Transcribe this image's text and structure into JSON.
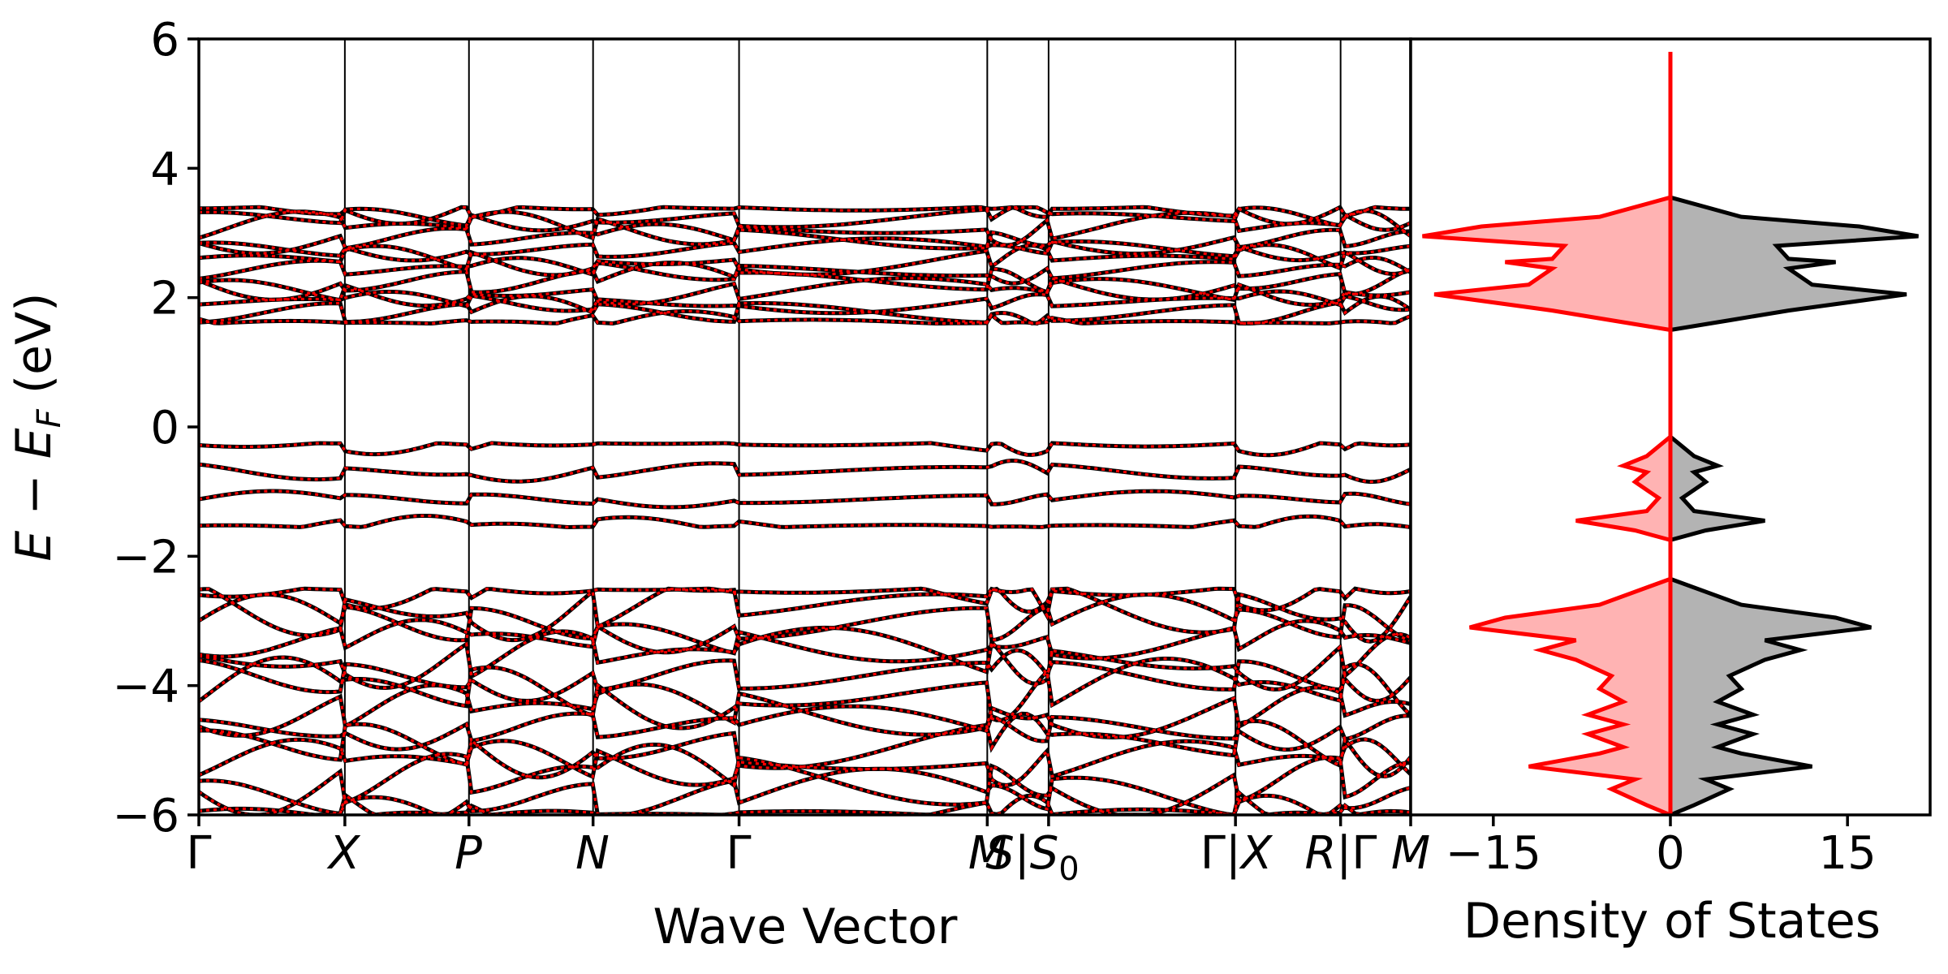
{
  "chart_data": [
    {
      "type": "line",
      "name": "band-structure",
      "xlabel": "Wave Vector",
      "ylabel": "E − E_F (eV)",
      "ylabel_parts": {
        "e": "E",
        "minus": " − ",
        "ef": "E",
        "sub": "F",
        "unit": " (eV)"
      },
      "ylim": [
        -6,
        6
      ],
      "yticks": [
        6,
        4,
        2,
        0,
        -2,
        -4,
        -6
      ],
      "ytick_labels": [
        "6",
        "4",
        "2",
        "0",
        "−2",
        "−4",
        "−6"
      ],
      "kpoints": [
        "Γ",
        "X",
        "P",
        "N",
        "Γ",
        "M",
        "S|S",
        "Γ|X",
        "R|Γ",
        "M"
      ],
      "kpoint_labels": {
        "g0": "Γ",
        "x": "X",
        "p": "P",
        "n": "N",
        "g1": "Γ",
        "m": "M",
        "s": "S",
        "bar1": "|",
        "s0": "S",
        "s0_sub": "0",
        "g2": "Γ",
        "bar2": "|",
        "x2": "X",
        "r": "R",
        "bar3": "|",
        "g3": "Γ",
        "m2": "M"
      },
      "kpath_positions": [
        0,
        1,
        1.85,
        2.7,
        3.7,
        5.4,
        5.82,
        7.1,
        7.82,
        8.3
      ],
      "series": [
        {
          "name": "spin-up",
          "color": "#000000",
          "style": "solid"
        },
        {
          "name": "spin-down",
          "color": "#ff0000",
          "style": "dotted"
        }
      ],
      "band_groups": {
        "conduction": {
          "range": [
            1.6,
            3.4
          ],
          "count": 12
        },
        "valence_top": {
          "range": [
            -1.55,
            -0.25
          ],
          "count": 4
        },
        "valence_bottom": {
          "range": [
            -6,
            -2.5
          ],
          "count": 14
        }
      }
    },
    {
      "type": "area",
      "name": "density-of-states",
      "xlabel": "Density of States",
      "xticks": [
        -15,
        0,
        15
      ],
      "xtick_labels": [
        "−15",
        "0",
        "15"
      ],
      "xlim": [
        -22,
        22
      ],
      "ylim": [
        -6,
        6
      ],
      "series": [
        {
          "name": "spin-up",
          "color": "#000000",
          "fill": "#b3b3b3",
          "points": [
            [
              0,
              -6
            ],
            [
              2,
              -5.85
            ],
            [
              5,
              -5.6
            ],
            [
              3,
              -5.45
            ],
            [
              12,
              -5.25
            ],
            [
              6,
              -5.05
            ],
            [
              4,
              -4.95
            ],
            [
              7,
              -4.75
            ],
            [
              4,
              -4.6
            ],
            [
              7,
              -4.45
            ],
            [
              4,
              -4.25
            ],
            [
              6,
              -4.05
            ],
            [
              5,
              -3.85
            ],
            [
              8,
              -3.6
            ],
            [
              11,
              -3.45
            ],
            [
              8,
              -3.3
            ],
            [
              17,
              -3.1
            ],
            [
              14,
              -2.95
            ],
            [
              6,
              -2.75
            ],
            [
              0,
              -2.35
            ],
            [
              0,
              -1.75
            ],
            [
              3,
              -1.6
            ],
            [
              8,
              -1.45
            ],
            [
              2,
              -1.3
            ],
            [
              1,
              -1.1
            ],
            [
              3,
              -0.85
            ],
            [
              2,
              -0.7
            ],
            [
              4,
              -0.6
            ],
            [
              2,
              -0.45
            ],
            [
              1,
              -0.3
            ],
            [
              0,
              -0.15
            ],
            [
              0,
              1.5
            ],
            [
              5,
              1.65
            ],
            [
              10,
              1.8
            ],
            [
              20,
              2.05
            ],
            [
              12,
              2.2
            ],
            [
              10,
              2.45
            ],
            [
              14,
              2.55
            ],
            [
              10,
              2.6
            ],
            [
              9,
              2.8
            ],
            [
              21,
              2.95
            ],
            [
              16,
              3.1
            ],
            [
              6,
              3.25
            ],
            [
              0,
              3.55
            ]
          ]
        },
        {
          "name": "spin-down",
          "color": "#ff0000",
          "fill": "#ffb3b3",
          "mirrored": true,
          "points": [
            [
              0,
              -6
            ],
            [
              2,
              -5.85
            ],
            [
              5,
              -5.6
            ],
            [
              3,
              -5.45
            ],
            [
              12,
              -5.25
            ],
            [
              6,
              -5.05
            ],
            [
              4,
              -4.95
            ],
            [
              7,
              -4.75
            ],
            [
              4,
              -4.6
            ],
            [
              7,
              -4.45
            ],
            [
              4,
              -4.25
            ],
            [
              6,
              -4.05
            ],
            [
              5,
              -3.85
            ],
            [
              8,
              -3.6
            ],
            [
              11,
              -3.45
            ],
            [
              8,
              -3.3
            ],
            [
              17,
              -3.1
            ],
            [
              14,
              -2.95
            ],
            [
              6,
              -2.75
            ],
            [
              0,
              -2.35
            ],
            [
              0,
              -1.75
            ],
            [
              3,
              -1.6
            ],
            [
              8,
              -1.45
            ],
            [
              2,
              -1.3
            ],
            [
              1,
              -1.1
            ],
            [
              3,
              -0.85
            ],
            [
              2,
              -0.7
            ],
            [
              4,
              -0.6
            ],
            [
              2,
              -0.45
            ],
            [
              1,
              -0.3
            ],
            [
              0,
              -0.15
            ],
            [
              0,
              1.5
            ],
            [
              5,
              1.65
            ],
            [
              10,
              1.8
            ],
            [
              20,
              2.05
            ],
            [
              12,
              2.2
            ],
            [
              10,
              2.45
            ],
            [
              14,
              2.55
            ],
            [
              10,
              2.6
            ],
            [
              9,
              2.8
            ],
            [
              21,
              2.95
            ],
            [
              16,
              3.1
            ],
            [
              6,
              3.25
            ],
            [
              0,
              3.55
            ]
          ]
        }
      ],
      "center_line": {
        "color": "#ff0000",
        "x": 0,
        "ylim": [
          -6,
          5.8
        ]
      }
    }
  ]
}
